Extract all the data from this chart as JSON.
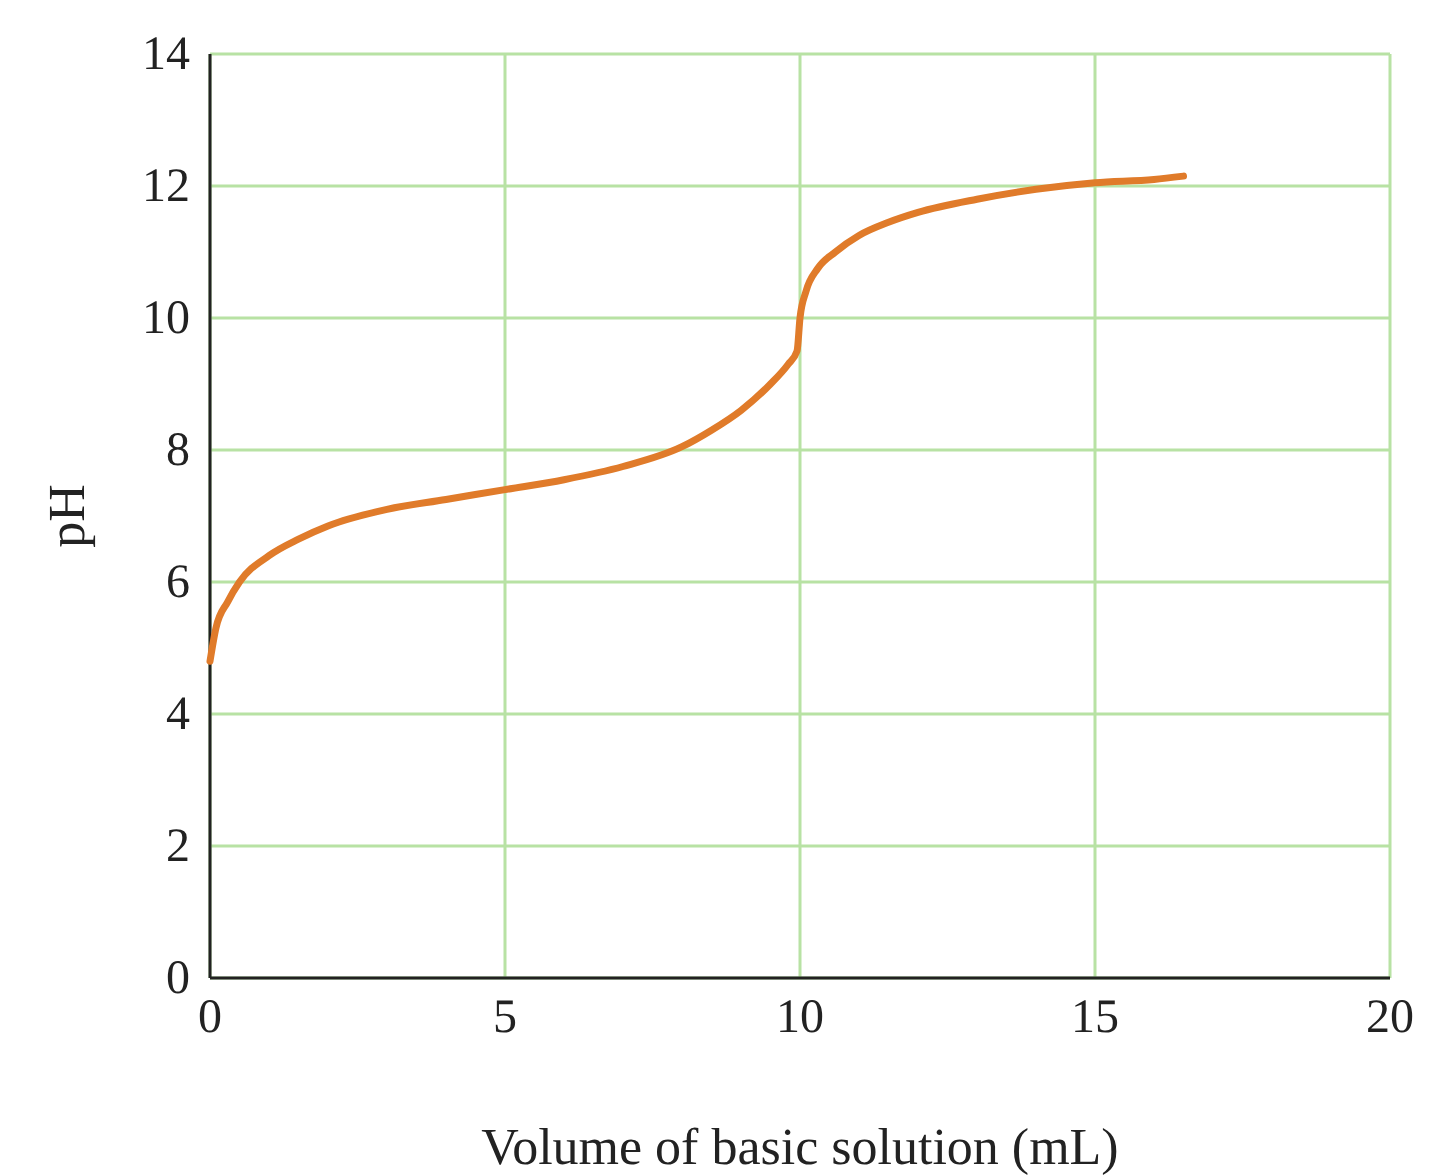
{
  "chart_data": {
    "type": "line",
    "xlabel": "Volume of basic solution (mL)",
    "ylabel": "pH",
    "xlim": [
      0,
      20
    ],
    "xticks": [
      0,
      5,
      10,
      15,
      20
    ],
    "ylim": [
      0,
      14
    ],
    "yticks": [
      0,
      2,
      4,
      6,
      8,
      10,
      12,
      14
    ],
    "grid": true,
    "series": [
      {
        "color": "#e07b2a",
        "x": [
          0,
          0.1,
          0.3,
          0.5,
          1,
          1.5,
          2,
          3,
          4,
          5,
          6,
          7,
          8,
          8.5,
          9,
          9.5,
          9.8,
          9.95,
          10,
          10.1,
          10.3,
          10.6,
          11,
          11.5,
          12,
          13,
          14,
          15,
          16,
          16.5
        ],
        "values": [
          4.8,
          5.3,
          5.7,
          6.0,
          6.4,
          6.65,
          6.85,
          7.1,
          7.25,
          7.4,
          7.55,
          7.75,
          8.05,
          8.3,
          8.6,
          9.0,
          9.3,
          9.5,
          10.0,
          10.4,
          10.75,
          11.0,
          11.25,
          11.45,
          11.6,
          11.8,
          11.95,
          12.05,
          12.1,
          12.15
        ]
      }
    ]
  }
}
